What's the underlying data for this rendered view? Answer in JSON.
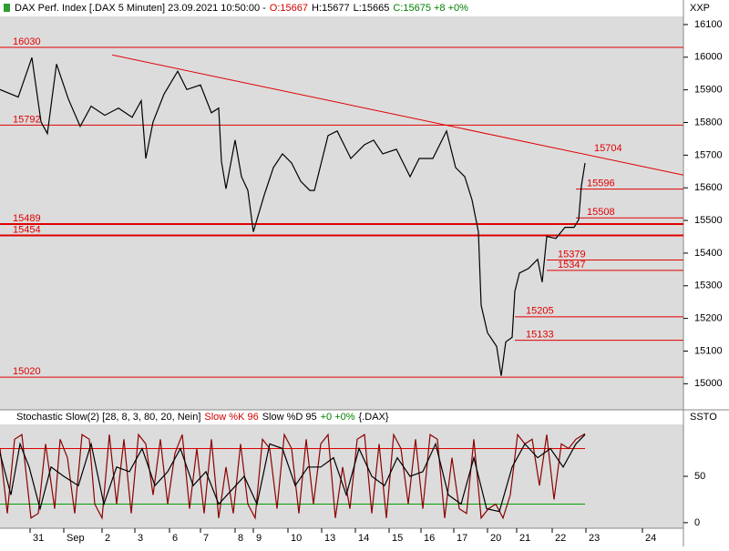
{
  "chart_data": [
    {
      "type": "line",
      "title": "DAX Perf. Index [.DAX  5 Minuten] 23.09.2021 10:50:00 -",
      "header": [
        {
          "text": "O:15667",
          "color": "#d00000"
        },
        {
          "text": "H:15677",
          "color": "#000000"
        },
        {
          "text": "L:15665",
          "color": "#000000"
        },
        {
          "text": "C:15675 +8 +0%",
          "color": "#008000"
        }
      ],
      "y_label": "XXP",
      "xlim": [
        0,
        750
      ],
      "ylim": [
        14920,
        16125
      ],
      "yticks": [
        15000,
        15100,
        15200,
        15300,
        15400,
        15500,
        15600,
        15700,
        15800,
        15900,
        16000,
        16100
      ],
      "series": [
        {
          "name": "DAX",
          "color": "#000000",
          "x": [
            0,
            20,
            35,
            45,
            52,
            62,
            75,
            88,
            100,
            115,
            130,
            145,
            155,
            160,
            168,
            180,
            195,
            205,
            220,
            232,
            240,
            243,
            248,
            258,
            265,
            272,
            278,
            290,
            300,
            310,
            320,
            330,
            340,
            345,
            360,
            370,
            385,
            400,
            410,
            420,
            435,
            450,
            460,
            475,
            490,
            500,
            510,
            518,
            525,
            528,
            535,
            545,
            550,
            555,
            562,
            565,
            570,
            580,
            590,
            595,
            600,
            610,
            620,
            630,
            635,
            638,
            642
          ],
          "values": [
            15901,
            15878,
            15999,
            15802,
            15766,
            15979,
            15872,
            15788,
            15850,
            15822,
            15844,
            15816,
            15867,
            15690,
            15802,
            15887,
            15957,
            15901,
            15915,
            15830,
            15844,
            15681,
            15597,
            15746,
            15634,
            15592,
            15465,
            15578,
            15662,
            15704,
            15676,
            15620,
            15592,
            15592,
            15760,
            15774,
            15690,
            15732,
            15746,
            15704,
            15718,
            15634,
            15690,
            15690,
            15774,
            15662,
            15634,
            15563,
            15465,
            15240,
            15156,
            15114,
            15024,
            15128,
            15142,
            15283,
            15339,
            15353,
            15381,
            15311,
            15451,
            15445,
            15479,
            15479,
            15502,
            15606,
            15676
          ]
        }
      ],
      "trend_line": {
        "color": "#e00000",
        "x": [
          123,
          750
        ],
        "values": [
          16007,
          15639
        ]
      },
      "levels": [
        {
          "value": 16030,
          "label_side": "left",
          "width": 1
        },
        {
          "value": 15792,
          "label_side": "left",
          "width": 1
        },
        {
          "value": 15489,
          "label_side": "left",
          "width": 2
        },
        {
          "value": 15454,
          "label_side": "left",
          "width": 2
        },
        {
          "value": 15020,
          "label_side": "left",
          "width": 1
        },
        {
          "value": 15704,
          "label_side": "right",
          "width": 0,
          "from": 640
        },
        {
          "value": 15596,
          "label_side": "right",
          "width": 1,
          "from": 632
        },
        {
          "value": 15508,
          "label_side": "right",
          "width": 1,
          "from": 632
        },
        {
          "value": 15379,
          "label_side": "right",
          "width": 1,
          "from": 600
        },
        {
          "value": 15347,
          "label_side": "right",
          "width": 1,
          "from": 600
        },
        {
          "value": 15205,
          "label_side": "right",
          "width": 1,
          "from": 565
        },
        {
          "value": 15133,
          "label_side": "right",
          "width": 1,
          "from": 565
        }
      ],
      "level_color": "#e00000"
    },
    {
      "type": "line",
      "title": "Stochastic Slow(2) [28, 8, 3, 80, 20, Nein]",
      "header": [
        {
          "text": "Slow %K 96",
          "color": "#d00000"
        },
        {
          "text": "Slow %D 95",
          "color": "#000000"
        },
        {
          "text": "+0 +0%",
          "color": "#008000"
        },
        {
          "text": "{.DAX}",
          "color": "#000000"
        }
      ],
      "y_label": "SSTO",
      "xlim": [
        0,
        750
      ],
      "ylim": [
        -6,
        106
      ],
      "yticks": [
        0,
        50
      ],
      "xticks": [
        {
          "value": 33,
          "label": "31"
        },
        {
          "value": 70,
          "label": "Sep"
        },
        {
          "value": 112,
          "label": "2"
        },
        {
          "value": 148,
          "label": "3"
        },
        {
          "value": 186,
          "label": "6"
        },
        {
          "value": 220,
          "label": "7"
        },
        {
          "value": 258,
          "label": "8"
        },
        {
          "value": 278,
          "label": "9"
        },
        {
          "value": 316,
          "label": "10"
        },
        {
          "value": 353,
          "label": "13"
        },
        {
          "value": 390,
          "label": "14"
        },
        {
          "value": 427,
          "label": "15"
        },
        {
          "value": 462,
          "label": "16"
        },
        {
          "value": 498,
          "label": "17"
        },
        {
          "value": 535,
          "label": "20"
        },
        {
          "value": 567,
          "label": "21"
        },
        {
          "value": 606,
          "label": "22"
        },
        {
          "value": 643,
          "label": "23"
        },
        {
          "value": 705,
          "label": "24"
        }
      ],
      "series": [
        {
          "name": "Slow %K",
          "color": "#8b0000",
          "x": [
            0,
            8,
            16,
            24,
            34,
            42,
            50,
            60,
            66,
            74,
            82,
            90,
            98,
            104,
            112,
            120,
            128,
            136,
            144,
            152,
            160,
            168,
            176,
            184,
            192,
            200,
            208,
            216,
            224,
            232,
            240,
            248,
            256,
            264,
            272,
            280,
            288,
            296,
            304,
            312,
            320,
            328,
            336,
            344,
            352,
            360,
            368,
            376,
            384,
            392,
            400,
            408,
            416,
            424,
            432,
            440,
            448,
            456,
            464,
            472,
            480,
            488,
            496,
            504,
            512,
            520,
            528,
            536,
            544,
            552,
            560,
            568,
            576,
            584,
            592,
            600,
            608,
            616,
            624,
            632,
            642
          ],
          "values": [
            80,
            10,
            90,
            95,
            5,
            10,
            85,
            15,
            90,
            70,
            10,
            95,
            90,
            20,
            5,
            95,
            20,
            90,
            10,
            95,
            85,
            30,
            90,
            20,
            75,
            95,
            15,
            80,
            10,
            90,
            5,
            60,
            10,
            85,
            20,
            5,
            90,
            80,
            15,
            95,
            80,
            10,
            90,
            20,
            85,
            95,
            5,
            60,
            15,
            90,
            95,
            10,
            85,
            5,
            95,
            80,
            20,
            90,
            15,
            95,
            90,
            5,
            70,
            15,
            10,
            90,
            5,
            15,
            20,
            5,
            30,
            95,
            85,
            90,
            40,
            95,
            25,
            85,
            80,
            90,
            96
          ]
        },
        {
          "name": "Slow %D",
          "color": "#000000",
          "x": [
            0,
            12,
            22,
            32,
            44,
            56,
            70,
            86,
            100,
            114,
            128,
            142,
            156,
            170,
            184,
            198,
            212,
            226,
            240,
            254,
            268,
            282,
            296,
            310,
            324,
            338,
            352,
            366,
            380,
            394,
            408,
            422,
            436,
            450,
            464,
            478,
            492,
            506,
            520,
            534,
            548,
            562,
            576,
            590,
            604,
            618,
            632,
            642
          ],
          "values": [
            75,
            30,
            85,
            60,
            15,
            60,
            50,
            40,
            85,
            20,
            60,
            55,
            80,
            40,
            55,
            80,
            40,
            55,
            20,
            35,
            50,
            20,
            85,
            80,
            40,
            60,
            60,
            70,
            30,
            80,
            50,
            40,
            70,
            50,
            55,
            85,
            30,
            20,
            70,
            15,
            12,
            60,
            85,
            70,
            80,
            60,
            85,
            95
          ]
        }
      ],
      "bands": [
        {
          "value": 80,
          "color": "#e00000"
        },
        {
          "value": 20,
          "color": "#00a000"
        }
      ],
      "band_to": 642
    }
  ]
}
